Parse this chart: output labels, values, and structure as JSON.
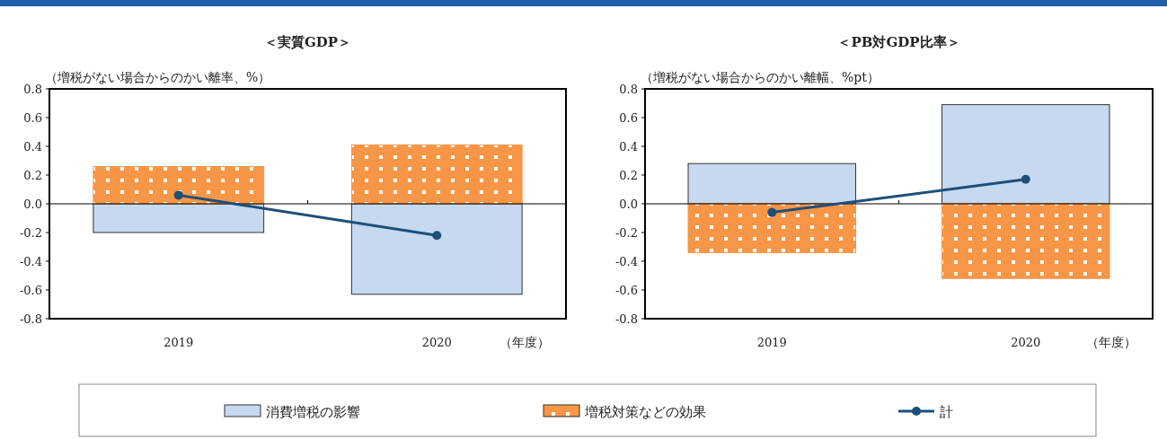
{
  "chart_data": [
    {
      "type": "bar",
      "title": "＜実質GDP＞",
      "ylabel": "（増税がない場合からのかい離率、%）",
      "xlabel": "（年度）",
      "categories": [
        "2019",
        "2020"
      ],
      "stacked": true,
      "ylim": [
        -0.8,
        0.8
      ],
      "yticks": [
        {
          "value": -0.8,
          "label": "-0.8"
        },
        {
          "value": -0.6,
          "label": "-0.6"
        },
        {
          "value": -0.4,
          "label": "-0.4"
        },
        {
          "value": -0.2,
          "label": "-0.2"
        },
        {
          "value": 0,
          "label": "0.0"
        },
        0.2,
        0.4,
        0.6,
        0.8
      ],
      "legend": "bottom",
      "marker": "circle",
      "series": [
        {
          "name": "消費増税の影響",
          "color": "#c6d9f0",
          "values": [
            -0.2,
            -0.63
          ]
        },
        {
          "name": "増税対策などの効果",
          "color": "#f79646",
          "values": [
            0.26,
            0.41
          ]
        },
        {
          "name": "計",
          "type": "line",
          "color": "#1f4e79",
          "values": [
            0.06,
            -0.22
          ]
        }
      ]
    },
    {
      "type": "bar",
      "title": "＜PB対GDP比率＞",
      "ylabel": "（増税がない場合からのかい離幅、%pt）",
      "xlabel": "（年度）",
      "categories": [
        "2019",
        "2020"
      ],
      "stacked": true,
      "ylim": [
        -0.8,
        0.8
      ],
      "yticks": [
        {
          "value": -0.8,
          "label": "-0.8"
        },
        {
          "value": -0.6,
          "label": "-0.6"
        },
        {
          "value": -0.4,
          "label": "-0.4"
        },
        {
          "value": -0.2,
          "label": "-0.2"
        },
        {
          "value": 0,
          "label": "0.0"
        },
        0.2,
        0.4,
        0.6,
        0.8
      ],
      "marker": "circle",
      "series": [
        {
          "color": "#c6d9f0",
          "values": [
            0.28,
            0.69
          ]
        },
        {
          "color": "#f79646",
          "values": [
            -0.34,
            -0.52
          ]
        },
        {
          "type": "line",
          "color": "#1f4e79",
          "values": [
            -0.06,
            0.17
          ]
        }
      ]
    }
  ]
}
